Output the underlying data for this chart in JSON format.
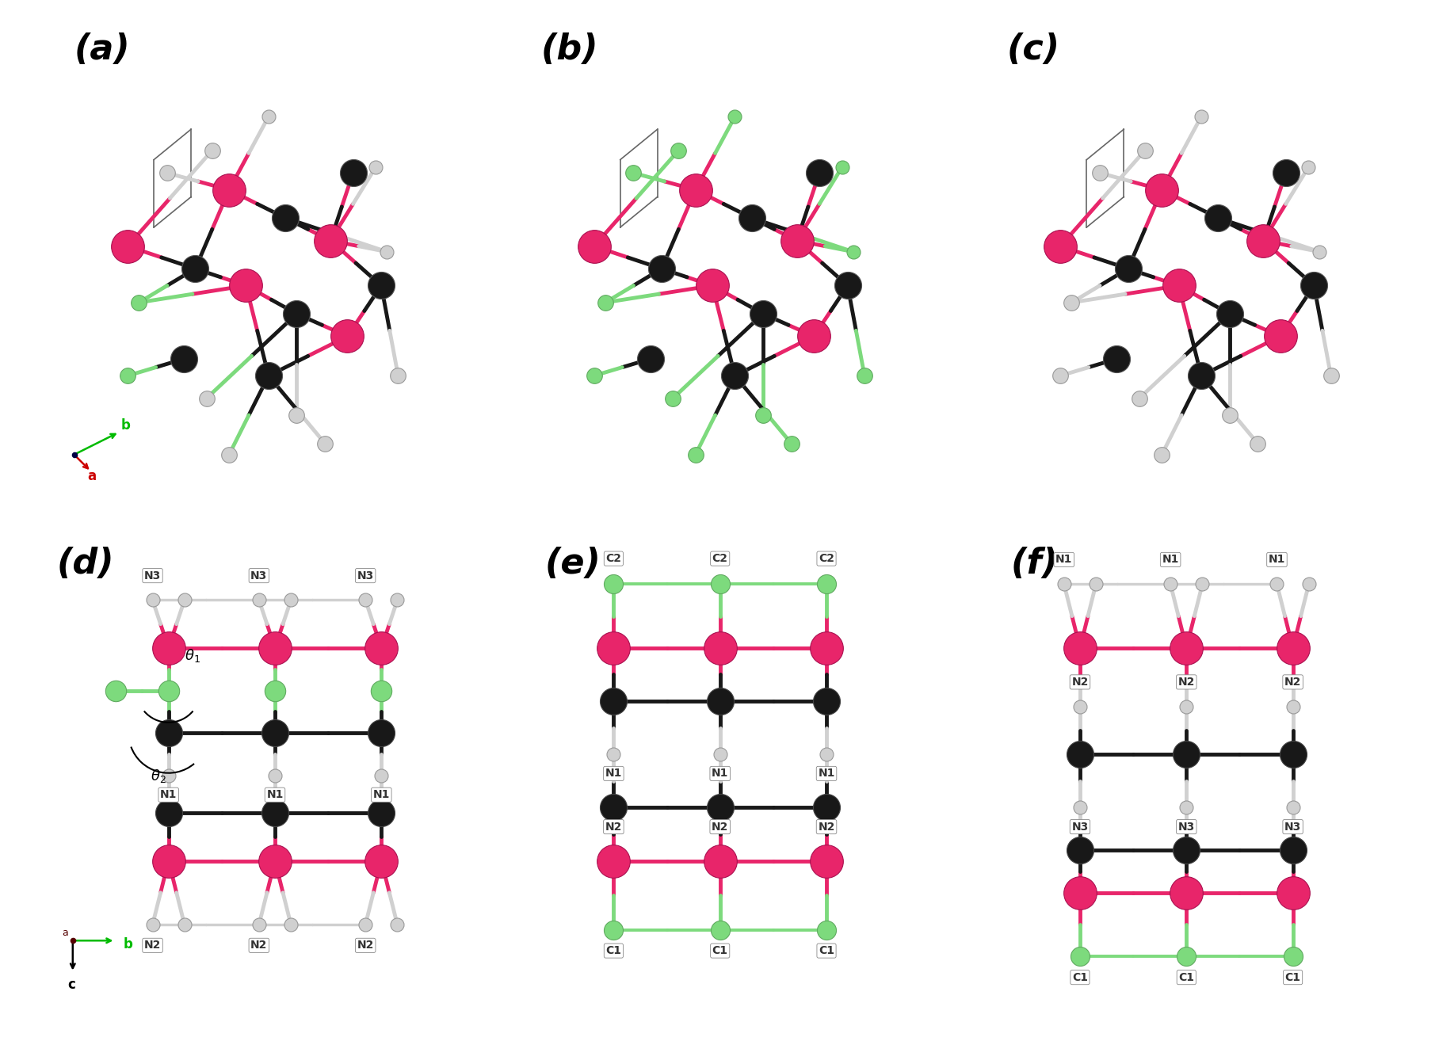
{
  "panels": [
    "(a)",
    "(b)",
    "(c)",
    "(d)",
    "(e)",
    "(f)"
  ],
  "bg_color": "#ffffff",
  "colors": {
    "M_atom": "#e8256a",
    "Si_atom": "#7dda7d",
    "N_atom": "#d0d0d0",
    "C_atom": "#181818",
    "bond_M": "#e8256a",
    "bond_Si": "#7dda7d",
    "bond_N": "#d0d0d0",
    "bond_C": "#181818",
    "cell_line": "#666666"
  },
  "M_size": 900,
  "C_size": 600,
  "Si_size": 200,
  "N_size": 150,
  "panel_fs": 32,
  "label_fs": 10,
  "bond_lw": 3.5
}
